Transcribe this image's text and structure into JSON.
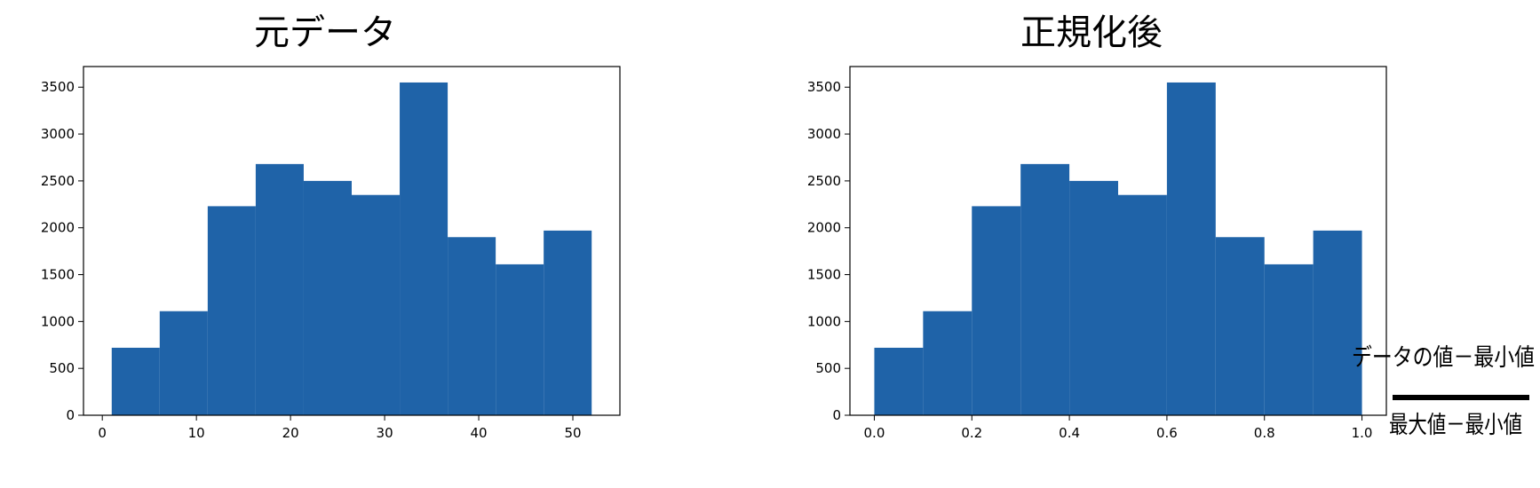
{
  "chart_data": [
    {
      "type": "bar",
      "title": "元データ",
      "xlabel": "",
      "ylabel": "",
      "bin_edges": [
        1.0,
        6.1,
        11.2,
        16.3,
        21.4,
        26.5,
        31.6,
        36.7,
        41.8,
        46.9,
        52.0
      ],
      "values": [
        720,
        1110,
        2230,
        2680,
        2500,
        2350,
        3550,
        1900,
        1610,
        1970
      ],
      "xlim": [
        -2.0,
        55.0
      ],
      "ylim": [
        0,
        3720
      ],
      "xticks": [
        0,
        10,
        20,
        30,
        40,
        50
      ],
      "xtick_labels": [
        "0",
        "10",
        "20",
        "30",
        "40",
        "50"
      ],
      "yticks": [
        0,
        500,
        1000,
        1500,
        2000,
        2500,
        3000,
        3500
      ],
      "ytick_labels": [
        "0",
        "500",
        "1000",
        "1500",
        "2000",
        "2500",
        "3000",
        "3500"
      ],
      "bar_color": "#1f63a8",
      "grid": false
    },
    {
      "type": "bar",
      "title": "正規化後",
      "xlabel": "",
      "ylabel": "",
      "bin_edges": [
        0.0,
        0.1,
        0.2,
        0.3,
        0.4,
        0.5,
        0.6,
        0.7,
        0.8,
        0.9,
        1.0
      ],
      "values": [
        720,
        1110,
        2230,
        2680,
        2500,
        2350,
        3550,
        1900,
        1610,
        1970
      ],
      "xlim": [
        -0.05,
        1.05
      ],
      "ylim": [
        0,
        3720
      ],
      "xticks": [
        0.0,
        0.2,
        0.4,
        0.6,
        0.8,
        1.0
      ],
      "xtick_labels": [
        "0.0",
        "0.2",
        "0.4",
        "0.6",
        "0.8",
        "1.0"
      ],
      "yticks": [
        0,
        500,
        1000,
        1500,
        2000,
        2500,
        3000,
        3500
      ],
      "ytick_labels": [
        "0",
        "500",
        "1000",
        "1500",
        "2000",
        "2500",
        "3000",
        "3500"
      ],
      "bar_color": "#1f63a8",
      "grid": false
    }
  ],
  "formula": {
    "numerator": "データの値－最小値",
    "denominator": "最大値－最小値"
  }
}
